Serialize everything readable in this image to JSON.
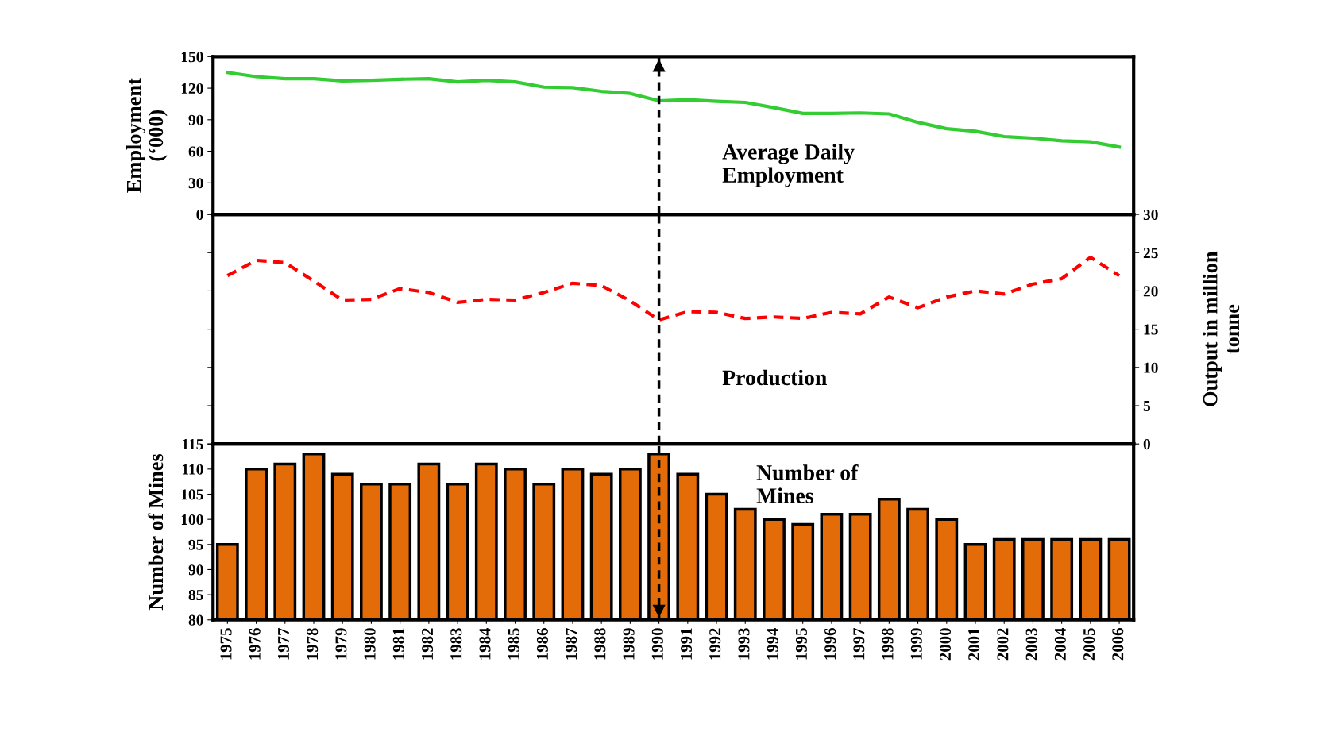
{
  "chart_data": [
    {
      "type": "line",
      "categories": [
        "1975",
        "1976",
        "1977",
        "1978",
        "1979",
        "1980",
        "1981",
        "1982",
        "1983",
        "1984",
        "1985",
        "1986",
        "1987",
        "1988",
        "1989",
        "1990",
        "1991",
        "1992",
        "1993",
        "1994",
        "1995",
        "1996",
        "1997",
        "1998",
        "1999",
        "2000",
        "2001",
        "2002",
        "2003",
        "2004",
        "2005",
        "2006"
      ],
      "ylabel": "Employment\n(‘000)",
      "ylim": [
        0,
        150
      ],
      "yticks": [
        0,
        30,
        60,
        90,
        120,
        150
      ],
      "tick_labels": "y",
      "grid": false,
      "marker": "none",
      "line_style": "solid",
      "annotations": [
        "Average Daily\nEmployment"
      ],
      "ref_lines": [
        {
          "axis": "x",
          "value": "1990",
          "line_style": "dashed",
          "color": "#000000"
        }
      ],
      "series": [
        {
          "color": "#33cc33",
          "values": [
            135,
            131,
            129,
            129,
            127,
            127.5,
            128.5,
            129,
            126,
            127.5,
            126,
            121,
            120.5,
            117,
            115,
            108,
            109,
            107.5,
            106.5,
            101.5,
            96,
            96,
            96.5,
            95.5,
            87.5,
            81.5,
            79,
            74,
            72.5,
            70,
            69,
            64
          ]
        }
      ]
    },
    {
      "type": "line",
      "categories": [
        "1975",
        "1976",
        "1977",
        "1978",
        "1979",
        "1980",
        "1981",
        "1982",
        "1983",
        "1984",
        "1985",
        "1986",
        "1987",
        "1988",
        "1989",
        "1990",
        "1991",
        "1992",
        "1993",
        "1994",
        "1995",
        "1996",
        "1997",
        "1998",
        "1999",
        "2000",
        "2001",
        "2002",
        "2003",
        "2004",
        "2005",
        "2006"
      ],
      "y2label": "Output in million\ntonne",
      "y2lim": [
        0,
        30
      ],
      "y2ticks": [
        0,
        5,
        10,
        15,
        20,
        25,
        30
      ],
      "tick_labels": "y",
      "grid": false,
      "marker": "none",
      "line_style": "dashed",
      "annotations": [
        "Production"
      ],
      "ref_lines": [
        {
          "axis": "x",
          "value": "1990",
          "line_style": "dashed",
          "color": "#000000"
        }
      ],
      "series": [
        {
          "color": "#ff0000",
          "axis": "y2",
          "values": [
            22,
            24,
            23.7,
            21.3,
            18.8,
            18.9,
            20.3,
            19.8,
            18.5,
            18.9,
            18.8,
            19.8,
            21,
            20.7,
            18.7,
            16.2,
            17.3,
            17.2,
            16.4,
            16.6,
            16.4,
            17.2,
            17,
            19.2,
            17.8,
            19.2,
            20,
            19.6,
            20.9,
            21.6,
            24.4,
            22
          ]
        }
      ]
    },
    {
      "type": "bar",
      "categories": [
        "1975",
        "1976",
        "1977",
        "1978",
        "1979",
        "1980",
        "1981",
        "1982",
        "1983",
        "1984",
        "1985",
        "1986",
        "1987",
        "1988",
        "1989",
        "1990",
        "1991",
        "1992",
        "1993",
        "1994",
        "1995",
        "1996",
        "1997",
        "1998",
        "1999",
        "2000",
        "2001",
        "2002",
        "2003",
        "2004",
        "2005",
        "2006"
      ],
      "ylabel": "Number of Mines",
      "ylim": [
        80,
        115
      ],
      "yticks": [
        80,
        85,
        90,
        95,
        100,
        105,
        110,
        115
      ],
      "grid": false,
      "annotations": [
        "Number of\nMines"
      ],
      "ref_lines": [
        {
          "axis": "x",
          "value": "1990",
          "line_style": "dashed",
          "color": "#000000"
        }
      ],
      "series": [
        {
          "color": "#e36c09",
          "values": [
            95,
            110,
            111,
            113,
            109,
            107,
            107,
            111,
            107,
            111,
            110,
            107,
            110,
            109,
            110,
            113,
            109,
            105,
            102,
            100,
            99,
            101,
            101,
            104,
            102,
            100,
            95,
            96,
            96,
            96,
            96,
            96
          ]
        }
      ]
    }
  ]
}
